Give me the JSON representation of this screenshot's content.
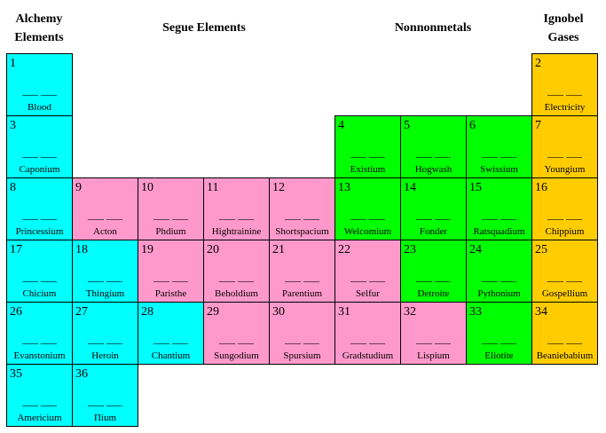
{
  "headers": {
    "alchemy": "Alchemy\nElements",
    "segue": "Segue Elements",
    "nonnonmetals": "Nonnonmetals",
    "ignobel": "Ignobel\nGases"
  },
  "colors": {
    "alchemy": "#00ffff",
    "segue": "#ff99cc",
    "nonnonmetals": "#00ff00",
    "ignobel": "#ffcc00"
  },
  "blank": "___ ___",
  "elements": [
    {
      "num": "1",
      "name": "Blood",
      "row": 1,
      "col": 1,
      "group": "alchemy"
    },
    {
      "num": "2",
      "name": "Electricity",
      "row": 1,
      "col": 8,
      "group": "ignobel"
    },
    {
      "num": "3",
      "name": "Caponium",
      "row": 2,
      "col": 1,
      "group": "alchemy"
    },
    {
      "num": "4",
      "name": "Existium",
      "row": 2,
      "col": 5,
      "group": "nonnonmetals"
    },
    {
      "num": "5",
      "name": "Hogwash",
      "row": 2,
      "col": 6,
      "group": "nonnonmetals"
    },
    {
      "num": "6",
      "name": "Swissium",
      "row": 2,
      "col": 7,
      "group": "nonnonmetals"
    },
    {
      "num": "7",
      "name": "Youngium",
      "row": 2,
      "col": 8,
      "group": "ignobel"
    },
    {
      "num": "8",
      "name": "Princessium",
      "row": 3,
      "col": 1,
      "group": "alchemy"
    },
    {
      "num": "9",
      "name": "Acton",
      "row": 3,
      "col": 2,
      "group": "segue"
    },
    {
      "num": "10",
      "name": "Phdium",
      "row": 3,
      "col": 3,
      "group": "segue"
    },
    {
      "num": "11",
      "name": "Hightrainine",
      "row": 3,
      "col": 4,
      "group": "segue"
    },
    {
      "num": "12",
      "name": "Shortspacium",
      "row": 3,
      "col": 5,
      "group": "segue"
    },
    {
      "num": "13",
      "name": "Welcomium",
      "row": 3,
      "col": 6,
      "group": "nonnonmetals"
    },
    {
      "num": "14",
      "name": "Fonder",
      "row": 3,
      "col": 7,
      "group": "nonnonmetals"
    },
    {
      "num": "15",
      "name": "Ratsquadium",
      "row": 3,
      "col": 8,
      "group": "nonnonmetals"
    },
    {
      "num": "16",
      "name": "Chippium",
      "row": 3,
      "col": 9,
      "group": "ignobel"
    },
    {
      "num": "17",
      "name": "Chicium",
      "row": 4,
      "col": 1,
      "group": "alchemy"
    },
    {
      "num": "18",
      "name": "Thingium",
      "row": 4,
      "col": 2,
      "group": "alchemy"
    },
    {
      "num": "19",
      "name": "Paristhe",
      "row": 4,
      "col": 3,
      "group": "segue"
    },
    {
      "num": "20",
      "name": "Beholdium",
      "row": 4,
      "col": 4,
      "group": "segue"
    },
    {
      "num": "21",
      "name": "Parentium",
      "row": 4,
      "col": 5,
      "group": "segue"
    },
    {
      "num": "22",
      "name": "Selfur",
      "row": 4,
      "col": 6,
      "group": "segue"
    },
    {
      "num": "23",
      "name": "Detroite",
      "row": 4,
      "col": 7,
      "group": "nonnonmetals"
    },
    {
      "num": "24",
      "name": "Pythonium",
      "row": 4,
      "col": 8,
      "group": "nonnonmetals"
    },
    {
      "num": "25",
      "name": "Gospellium",
      "row": 4,
      "col": 9,
      "group": "ignobel"
    },
    {
      "num": "26",
      "name": "Evanstonium",
      "row": 5,
      "col": 1,
      "group": "alchemy"
    },
    {
      "num": "27",
      "name": "Heroin",
      "row": 5,
      "col": 2,
      "group": "alchemy"
    },
    {
      "num": "28",
      "name": "Chantium",
      "row": 5,
      "col": 3,
      "group": "alchemy"
    },
    {
      "num": "29",
      "name": "Sungodium",
      "row": 5,
      "col": 4,
      "group": "segue"
    },
    {
      "num": "30",
      "name": "Spursium",
      "row": 5,
      "col": 5,
      "group": "segue"
    },
    {
      "num": "31",
      "name": "Gradstudium",
      "row": 5,
      "col": 6,
      "group": "segue"
    },
    {
      "num": "32",
      "name": "Lispium",
      "row": 5,
      "col": 7,
      "group": "segue"
    },
    {
      "num": "33",
      "name": "Eliotite",
      "row": 5,
      "col": 8,
      "group": "nonnonmetals"
    },
    {
      "num": "34",
      "name": "Beaniebabium",
      "row": 5,
      "col": 9,
      "group": "ignobel"
    },
    {
      "num": "35",
      "name": "Americium",
      "row": 6,
      "col": 1,
      "group": "alchemy"
    },
    {
      "num": "36",
      "name": "Πium",
      "row": 6,
      "col": 2,
      "group": "alchemy"
    }
  ]
}
